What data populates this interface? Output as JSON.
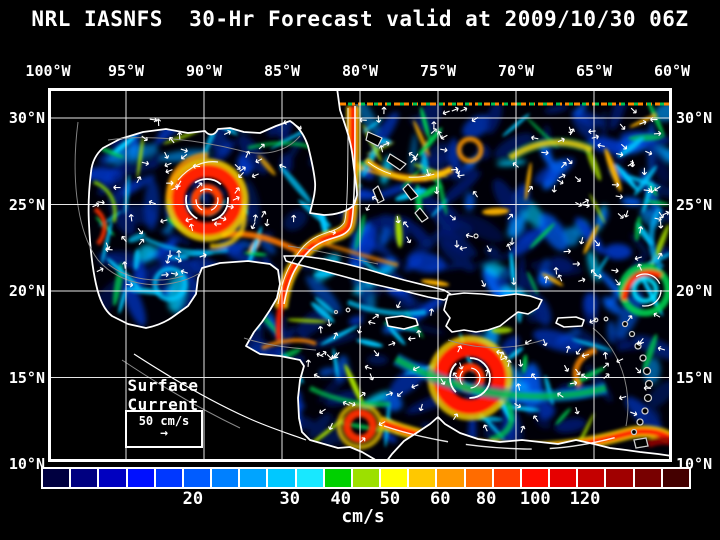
{
  "title": "NRL IASNFS  30-Hr Forecast valid at 2009/10/30 06Z",
  "axes": {
    "lon_ticks": [
      "100°W",
      "95°W",
      "90°W",
      "85°W",
      "80°W",
      "75°W",
      "70°W",
      "65°W",
      "60°W"
    ],
    "lat_ticks": [
      "30°N",
      "25°N",
      "20°N",
      "15°N",
      "10°N"
    ]
  },
  "annotation": {
    "label": "Surface Current",
    "scale_text": "50 cm/s",
    "scale_arrow": "→"
  },
  "colorbar": {
    "units": "cm/s",
    "ticks": [
      {
        "label": "20",
        "pct": 23.2
      },
      {
        "label": "30",
        "pct": 38.2
      },
      {
        "label": "40",
        "pct": 46.1
      },
      {
        "label": "50",
        "pct": 53.7
      },
      {
        "label": "60",
        "pct": 61.5
      },
      {
        "label": "80",
        "pct": 68.6
      },
      {
        "label": "100",
        "pct": 76.2
      },
      {
        "label": "120",
        "pct": 83.9
      }
    ],
    "colors": [
      "#000040",
      "#000080",
      "#0000c0",
      "#0010ff",
      "#0038ff",
      "#005cff",
      "#0080ff",
      "#00a4ff",
      "#00c8ff",
      "#18e8ff",
      "#00d000",
      "#9ce000",
      "#ffff00",
      "#ffc800",
      "#ff9800",
      "#ff6c00",
      "#ff3c00",
      "#ff0c00",
      "#e60000",
      "#c40000",
      "#a00000",
      "#780000",
      "#440000"
    ]
  }
}
